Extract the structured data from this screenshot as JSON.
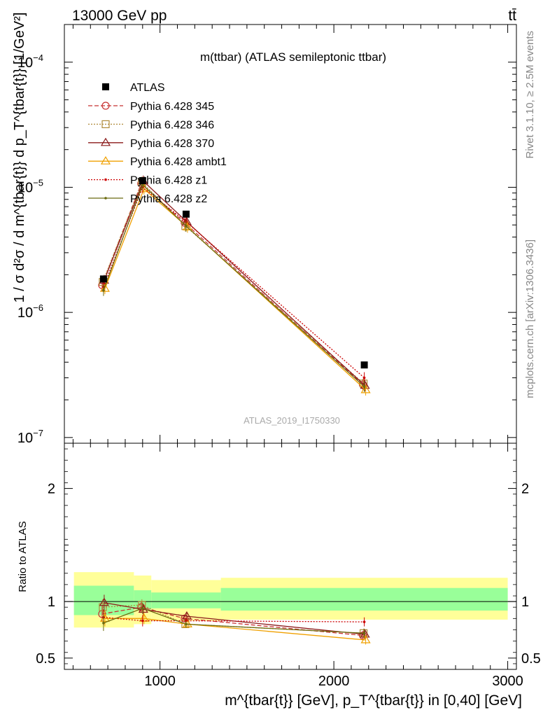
{
  "header": {
    "left": "13000 GeV pp",
    "right": "tt̄"
  },
  "side_labels": {
    "rivet": "Rivet 3.1.10, ≥ 2.5M events",
    "mcplots": "mcplots.cern.ch [arXiv:1306.3436]"
  },
  "plot_title": "m(ttbar) (ATLAS semileptonic ttbar)",
  "watermark": "ATLAS_2019_I1750330",
  "colors": {
    "data": "#000000",
    "p345": "#c83232",
    "p346": "#b08a3a",
    "p370": "#8b1a1a",
    "ambt1": "#f0a000",
    "z1": "#cc0000",
    "z2": "#6b6b10",
    "band_inner": "#99ff99",
    "band_outer": "#ffff99"
  },
  "chart_data": {
    "type": "line",
    "title": "m(ttbar) (ATLAS semileptonic ttbar)",
    "xlabel": "m^{tbar{t}} [GeV], p_T^{tbar{t}} in [0,40] [GeV]",
    "ylabel": "1 / σ d²σ / d m^{tbar{t}} d p_T^{tbar{t}} [1/GeV²]",
    "ratio_ylabel": "Ratio to ATLAS",
    "x_range": [
      450,
      3050
    ],
    "y_range": [
      9e-08,
      0.0002
    ],
    "y_scale": "log",
    "ratio_range": [
      0.4,
      2.4
    ],
    "x_ticks": [
      1000,
      2000,
      3000
    ],
    "y_ticks": [
      1e-07,
      1e-06,
      1e-05,
      0.0001
    ],
    "y_tick_labels": [
      [
        "10",
        "−7"
      ],
      [
        "10",
        "−6"
      ],
      [
        "10",
        "−5"
      ],
      [
        "10",
        "−4"
      ]
    ],
    "ratio_ticks": [
      0.5,
      1,
      2
    ],
    "legend_position": "top-left",
    "bins": [
      [
        500,
        850
      ],
      [
        850,
        950
      ],
      [
        950,
        1350
      ],
      [
        1350,
        3000
      ]
    ],
    "x": [
      675,
      900,
      1150,
      2175
    ],
    "data": {
      "name": "ATLAS",
      "values": [
        1.85e-06,
        1.13e-05,
        6.1e-06,
        3.8e-07
      ]
    },
    "band_inner": [
      [
        0.88,
        1.14
      ],
      [
        0.93,
        1.1
      ],
      [
        0.94,
        1.08
      ],
      [
        0.92,
        1.12
      ]
    ],
    "band_outer": [
      [
        0.77,
        1.26
      ],
      [
        0.8,
        1.23
      ],
      [
        0.83,
        1.19
      ],
      [
        0.84,
        1.21
      ]
    ],
    "series": [
      {
        "name": "Pythia 6.428 345",
        "color_key": "p345",
        "style": "dashed",
        "marker": "circle",
        "values": [
          1.65e-06,
          1.07e-05,
          5.2e-06,
          2.65e-07
        ],
        "ratio": [
          0.89,
          0.95,
          0.85,
          0.7
        ],
        "ratio_err": [
          0.07,
          0.05,
          0.03,
          0.04
        ]
      },
      {
        "name": "Pythia 6.428 346",
        "color_key": "p346",
        "style": "dotted",
        "marker": "square",
        "values": [
          1.75e-06,
          1.1e-05,
          4.9e-06,
          2.7e-07
        ],
        "ratio": [
          0.95,
          0.97,
          0.8,
          0.72
        ],
        "ratio_err": [
          0.07,
          0.05,
          0.03,
          0.04
        ]
      },
      {
        "name": "Pythia 6.428 370",
        "color_key": "p370",
        "style": "solid",
        "marker": "triangle",
        "values": [
          1.8e-06,
          1.12e-05,
          5.3e-06,
          2.6e-07
        ],
        "ratio": [
          0.99,
          0.93,
          0.87,
          0.71
        ],
        "ratio_err": [
          0.07,
          0.05,
          0.03,
          0.04
        ]
      },
      {
        "name": "Pythia 6.428 ambt1",
        "color_key": "ambt1",
        "style": "solid",
        "marker": "triangle",
        "values": [
          1.55e-06,
          9.7e-06,
          4.8e-06,
          2.4e-07
        ],
        "ratio": [
          0.85,
          0.85,
          0.8,
          0.66
        ],
        "ratio_err": [
          0.07,
          0.05,
          0.03,
          0.04
        ]
      },
      {
        "name": "Pythia 6.428 z1",
        "color_key": "z1",
        "style": "dotted",
        "marker": "dot",
        "values": [
          1.6e-06,
          1e-05,
          5.3e-06,
          3e-07
        ],
        "ratio": [
          0.86,
          0.83,
          0.83,
          0.82
        ],
        "ratio_err": [
          0.07,
          0.05,
          0.03,
          0.04
        ]
      },
      {
        "name": "Pythia 6.428 z2",
        "color_key": "z2",
        "style": "solid",
        "marker": "dot",
        "values": [
          1.5e-06,
          1.05e-05,
          4.9e-06,
          2.55e-07
        ],
        "ratio": [
          0.81,
          0.94,
          0.8,
          0.72
        ],
        "ratio_err": [
          0.07,
          0.05,
          0.03,
          0.04
        ]
      }
    ]
  }
}
